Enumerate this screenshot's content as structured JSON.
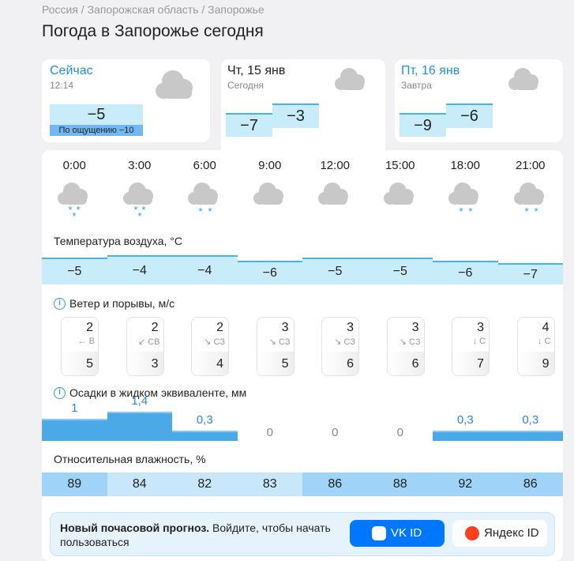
{
  "breadcrumbs": "Россия / Запорожская область / Запорожье",
  "title": "Погода в Запорожье сегодня",
  "now": {
    "label": "Сейчас",
    "time": "12:14",
    "temp": "−5",
    "feels": "По ощущению −10"
  },
  "days": [
    {
      "label": "Чт, 15 янв",
      "sub": "Сегодня",
      "night": "−7",
      "day": "−3"
    },
    {
      "label": "Пт, 16 янв",
      "sub": "Завтра",
      "night": "−9",
      "day": "−6"
    }
  ],
  "hours": [
    "0:00",
    "3:00",
    "6:00",
    "9:00",
    "12:00",
    "15:00",
    "18:00",
    "21:00"
  ],
  "temperature": {
    "title": "Температура воздуха, °C",
    "values": [
      "−5",
      "−4",
      "−4",
      "−6",
      "−5",
      "−5",
      "−6",
      "−7"
    ]
  },
  "wind": {
    "title": "Ветер и порывы, м/с",
    "speed": [
      2,
      2,
      2,
      3,
      3,
      3,
      3,
      4
    ],
    "direction": [
      "← В",
      "↙ СВ",
      "↘ СЗ",
      "↘ СЗ",
      "↘ СЗ",
      "↘ СЗ",
      "↓ С",
      "↓ С"
    ],
    "gusts": [
      5,
      3,
      4,
      5,
      6,
      6,
      7,
      9
    ]
  },
  "precipitation": {
    "title": "Осадки в жидком эквиваленте, мм",
    "values": [
      "1",
      "1,4",
      "0,3",
      "0",
      "0",
      "0",
      "0,3",
      "0,3"
    ]
  },
  "humidity": {
    "title": "Относительная влажность, %",
    "values": [
      89,
      84,
      82,
      83,
      86,
      88,
      92,
      86
    ]
  },
  "banner": {
    "bold": "Новый почасовой прогноз.",
    "text": "Войдите, чтобы начать пользоваться",
    "vk": "VK ID",
    "yandex": "Яндекс ID"
  }
}
